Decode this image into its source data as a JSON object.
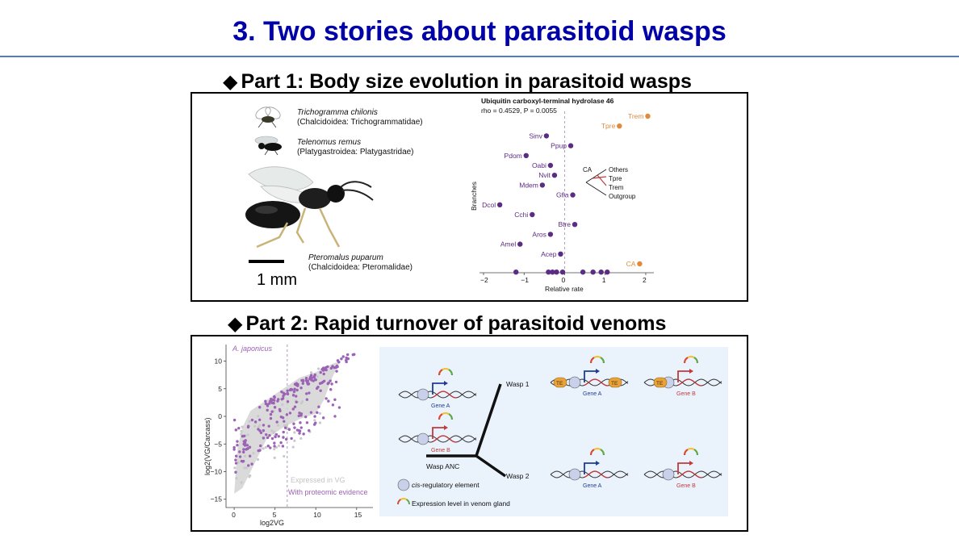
{
  "slide": {
    "title": "3. Two stories about parasitoid wasps"
  },
  "part1": {
    "heading": "Part 1: Body size evolution in parasitoid wasps",
    "species": [
      {
        "name": "Trichogramma chilonis",
        "family": "(Chalcidoidea: Trichogrammatidae)"
      },
      {
        "name": "Telenomus remus",
        "family": "(Platygastroidea: Platygastridae)"
      },
      {
        "name": "Pteromalus puparum",
        "family": "(Chalcidoidea: Pteromalidae)"
      }
    ],
    "scalebar": "1 mm"
  },
  "part2": {
    "heading": "Part 2: Rapid turnover of parasitoid venoms"
  },
  "chart_data": [
    {
      "type": "scatter",
      "title": "Ubiquitin carboxyl-terminal hydrolase 46",
      "subtitle": "rho = 0.4529, P = 0.0055",
      "xlabel": "Relative rate",
      "ylabel": "Branches",
      "xlim": [
        -2.1,
        2.2
      ],
      "xticks": [
        "−2",
        "−1",
        "0",
        "1",
        "2"
      ],
      "highlight_color": "#e08a3c",
      "point_color": "#5b2c83",
      "points": [
        {
          "label": "Trem",
          "x": 2.05,
          "row": 0,
          "highlight": true
        },
        {
          "label": "Tpre",
          "x": 1.35,
          "row": 1,
          "highlight": true
        },
        {
          "label": "Sinv",
          "x": -0.45,
          "row": 2
        },
        {
          "label": "Ppup",
          "x": 0.15,
          "row": 3
        },
        {
          "label": "Pdom",
          "x": -0.95,
          "row": 4
        },
        {
          "label": "Oabi",
          "x": -0.35,
          "row": 5
        },
        {
          "label": "Nvit",
          "x": -0.25,
          "row": 6
        },
        {
          "label": "Mdem",
          "x": -0.55,
          "row": 7
        },
        {
          "label": "Gfla",
          "x": 0.2,
          "row": 8
        },
        {
          "label": "Dcol",
          "x": -1.6,
          "row": 9
        },
        {
          "label": "Cchi",
          "x": -0.8,
          "row": 10
        },
        {
          "label": "Btre",
          "x": 0.25,
          "row": 11
        },
        {
          "label": "Aros",
          "x": -0.35,
          "row": 12
        },
        {
          "label": "Amel",
          "x": -1.1,
          "row": 13
        },
        {
          "label": "Acep",
          "x": -0.1,
          "row": 14
        },
        {
          "label": "CA",
          "x": 1.85,
          "row": 15,
          "highlight": true
        }
      ],
      "bottom_row_x": [
        -1.2,
        -0.4,
        -0.3,
        -0.2,
        -0.05,
        0.45,
        0.7,
        0.9,
        1.05
      ],
      "inset_tree": [
        "CA",
        "Others",
        "Tpre",
        "Trem",
        "Outgroup"
      ]
    },
    {
      "type": "scatter",
      "title": "A. japonicus",
      "xlabel": "log2VG",
      "ylabel": "log2(VG/Carcass)",
      "xlim": [
        -1,
        17
      ],
      "ylim": [
        -16.5,
        13
      ],
      "xticks": [
        "0",
        "5",
        "10",
        "15"
      ],
      "yticks": [
        "10",
        "5",
        "0",
        "−5",
        "−10",
        "−15"
      ],
      "vline_x": 6.5,
      "series": [
        {
          "name": "Expressed in VG",
          "color": "#c9c9c9"
        },
        {
          "name": "With proteomic evidence",
          "color": "#9b62b5"
        }
      ]
    }
  ],
  "model": {
    "genes": {
      "a": "Gene A",
      "b": "Gene B"
    },
    "branches": {
      "wasp1": "Wasp 1",
      "wasp2": "Wasp 2",
      "anc": "Wasp ANC"
    },
    "te_label": "TE",
    "legend": {
      "cis_prefix": "cis",
      "cis_suffix": "-regulatory element",
      "expression": "Expression level in venom gland"
    }
  }
}
